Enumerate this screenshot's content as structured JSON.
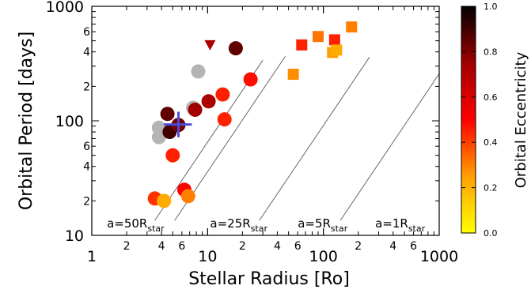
{
  "chart_data": {
    "type": "scatter",
    "xlabel": "Stellar Radius [Ro]",
    "ylabel": "Orbital Period [days]",
    "x_scale": "log",
    "y_scale": "log",
    "xlim": [
      1,
      1000
    ],
    "ylim": [
      10,
      1000
    ],
    "x_major_ticks": [
      {
        "value": 1,
        "label": "1"
      },
      {
        "value": 10,
        "label": "10"
      },
      {
        "value": 100,
        "label": "100"
      },
      {
        "value": 1000,
        "label": "1000"
      }
    ],
    "x_minor_labeled": [
      {
        "value": 2,
        "label": "2"
      },
      {
        "value": 4,
        "label": "4"
      },
      {
        "value": 6,
        "label": "6"
      },
      {
        "value": 20,
        "label": "2"
      },
      {
        "value": 40,
        "label": "4"
      },
      {
        "value": 60,
        "label": "6"
      },
      {
        "value": 200,
        "label": "2"
      },
      {
        "value": 400,
        "label": "4"
      },
      {
        "value": 600,
        "label": "6"
      }
    ],
    "y_major_ticks": [
      {
        "value": 10,
        "label": "10"
      },
      {
        "value": 100,
        "label": "100"
      },
      {
        "value": 1000,
        "label": "1000"
      }
    ],
    "y_minor_labeled": [
      {
        "value": 20,
        "label": "2"
      },
      {
        "value": 40,
        "label": "4"
      },
      {
        "value": 60,
        "label": "6"
      },
      {
        "value": 200,
        "label": "2"
      },
      {
        "value": 400,
        "label": "4"
      },
      {
        "value": 600,
        "label": "6"
      }
    ],
    "reference_lines": [
      {
        "a_over_R": 50,
        "label": "a=50R",
        "sub": "star",
        "x_start": 3.5,
        "x_end": 30,
        "label_x": 1.35,
        "label_y": 12.5
      },
      {
        "a_over_R": 25,
        "label": "a=25R",
        "sub": "star",
        "x_start": 5.2,
        "x_end": 47,
        "label_x": 10.5,
        "label_y": 12.5
      },
      {
        "a_over_R": 5,
        "label": "a=5R",
        "sub": "star",
        "x_start": 28,
        "x_end": 250,
        "label_x": 60,
        "label_y": 12.5
      },
      {
        "a_over_R": 1,
        "label": "a=1R",
        "sub": "star",
        "x_start": 140,
        "x_end": 1000,
        "label_x": 280,
        "label_y": 12.5
      }
    ],
    "colorbar": {
      "label": "Orbital Eccentricity",
      "range": [
        0,
        1
      ],
      "ticks": [
        {
          "value": 0.0,
          "label": "0.0"
        },
        {
          "value": 0.2,
          "label": "0.2"
        },
        {
          "value": 0.4,
          "label": "0.4"
        },
        {
          "value": 0.6,
          "label": "0.6"
        },
        {
          "value": 0.8,
          "label": "0.8"
        },
        {
          "value": 1.0,
          "label": "1.0"
        }
      ],
      "colormap": [
        "#ffff00",
        "#ffa000",
        "#ff0000",
        "#a00000",
        "#000000"
      ]
    },
    "points": [
      {
        "x": 3.5,
        "y": 21,
        "marker": "circle",
        "e": 0.42
      },
      {
        "x": 4.2,
        "y": 20,
        "marker": "circle",
        "e": 0.22
      },
      {
        "x": 3.8,
        "y": 72,
        "marker": "circle",
        "e": null
      },
      {
        "x": 3.8,
        "y": 87,
        "marker": "circle",
        "e": null
      },
      {
        "x": 4.5,
        "y": 115,
        "marker": "circle",
        "e": 0.85
      },
      {
        "x": 4.7,
        "y": 80,
        "marker": "circle",
        "e": 0.9
      },
      {
        "x": 5.0,
        "y": 50,
        "marker": "circle",
        "e": 0.45
      },
      {
        "x": 5.6,
        "y": 92,
        "marker": "circle",
        "e": 0.82
      },
      {
        "x": 6.3,
        "y": 25,
        "marker": "circle",
        "e": 0.5
      },
      {
        "x": 6.8,
        "y": 22,
        "marker": "circle",
        "e": 0.3
      },
      {
        "x": 7.5,
        "y": 130,
        "marker": "circle",
        "e": null
      },
      {
        "x": 7.8,
        "y": 125,
        "marker": "circle",
        "e": 0.75
      },
      {
        "x": 8.3,
        "y": 270,
        "marker": "circle",
        "e": null
      },
      {
        "x": 10.2,
        "y": 148,
        "marker": "circle",
        "e": 0.72
      },
      {
        "x": 10.5,
        "y": 460,
        "marker": "triangle",
        "e": 0.72
      },
      {
        "x": 13.5,
        "y": 170,
        "marker": "circle",
        "e": 0.45
      },
      {
        "x": 14.0,
        "y": 103,
        "marker": "circle",
        "e": 0.45
      },
      {
        "x": 17.5,
        "y": 430,
        "marker": "circle",
        "e": 0.85
      },
      {
        "x": 23.5,
        "y": 230,
        "marker": "circle",
        "e": 0.48
      },
      {
        "x": 55,
        "y": 255,
        "marker": "square",
        "e": 0.28
      },
      {
        "x": 65,
        "y": 460,
        "marker": "square",
        "e": 0.45
      },
      {
        "x": 90,
        "y": 545,
        "marker": "square",
        "e": 0.32
      },
      {
        "x": 120,
        "y": 395,
        "marker": "square",
        "e": 0.25
      },
      {
        "x": 125,
        "y": 510,
        "marker": "square",
        "e": 0.45
      },
      {
        "x": 130,
        "y": 415,
        "marker": "square",
        "e": 0.22
      },
      {
        "x": 175,
        "y": 660,
        "marker": "square",
        "e": 0.3
      }
    ],
    "special_point": {
      "x": 5.6,
      "y": 93,
      "marker": "cross",
      "color": "#4b4bd8",
      "x_err": [
        4.2,
        7.3
      ],
      "y_err": [
        72,
        120
      ]
    }
  }
}
